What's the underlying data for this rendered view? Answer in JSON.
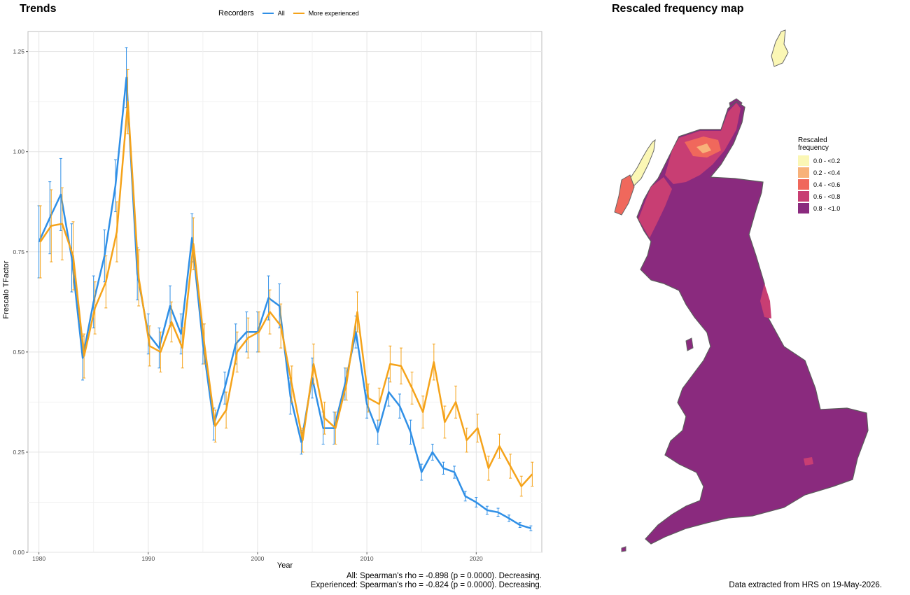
{
  "titles": {
    "trends": "Trends",
    "map": "Rescaled frequency map"
  },
  "legend": {
    "title": "Recorders",
    "all": "All",
    "experienced": "More experienced"
  },
  "colors": {
    "all": "#2f8fe6",
    "experienced": "#f5a31a"
  },
  "stats": {
    "all": "All: Spearman's rho = -0.898 (p = 0.0000). Decreasing.",
    "experienced": "Experienced: Spearman's rho = -0.824 (p = 0.0000). Decreasing."
  },
  "footer": "Data extracted from HRS on 19-May-2026.",
  "map_legend": {
    "title_line1": "Rescaled",
    "title_line2": "frequency",
    "items": [
      {
        "label": "0.0 - <0.2",
        "color": "#fbf7b5"
      },
      {
        "label": "0.2 - <0.4",
        "color": "#f8b27a"
      },
      {
        "label": "0.4 - <0.6",
        "color": "#f0685c"
      },
      {
        "label": "0.6 - <0.8",
        "color": "#c83e73"
      },
      {
        "label": "0.8 - <1.0",
        "color": "#8a2a7e"
      }
    ]
  },
  "chart_data": {
    "type": "line",
    "xlabel": "Year",
    "ylabel": "Frescalo TFactor",
    "xlim": [
      1979,
      2026
    ],
    "ylim": [
      0,
      1.3
    ],
    "xticks": [
      1980,
      1990,
      2000,
      2010,
      2020
    ],
    "yticks": [
      0.0,
      0.25,
      0.5,
      0.75,
      1.0,
      1.25
    ],
    "ytick_labels": [
      "0.00",
      "0.25",
      "0.50",
      "0.75",
      "1.00",
      "1.25"
    ],
    "grid": true,
    "error_bars": true,
    "series": [
      {
        "name": "All",
        "x": [
          1980,
          1981,
          1982,
          1983,
          1984,
          1985,
          1986,
          1987,
          1988,
          1989,
          1990,
          1991,
          1992,
          1993,
          1994,
          1995,
          1996,
          1997,
          1998,
          1999,
          2000,
          2001,
          2002,
          2003,
          2004,
          2005,
          2006,
          2007,
          2008,
          2009,
          2010,
          2011,
          2012,
          2013,
          2014,
          2015,
          2016,
          2017,
          2018,
          2019,
          2020,
          2021,
          2022,
          2023,
          2024,
          2025
        ],
        "y": [
          0.775,
          0.835,
          0.893,
          0.735,
          0.485,
          0.625,
          0.74,
          0.915,
          1.185,
          0.695,
          0.545,
          0.51,
          0.615,
          0.545,
          0.785,
          0.52,
          0.32,
          0.41,
          0.52,
          0.55,
          0.55,
          0.635,
          0.615,
          0.39,
          0.275,
          0.435,
          0.31,
          0.31,
          0.42,
          0.55,
          0.37,
          0.3,
          0.4,
          0.365,
          0.3,
          0.2,
          0.25,
          0.21,
          0.2,
          0.14,
          0.125,
          0.105,
          0.1,
          0.085,
          0.068,
          0.06
        ],
        "err": [
          0.09,
          0.09,
          0.09,
          0.085,
          0.055,
          0.065,
          0.065,
          0.065,
          0.075,
          0.065,
          0.05,
          0.05,
          0.05,
          0.05,
          0.06,
          0.05,
          0.04,
          0.04,
          0.05,
          0.05,
          0.05,
          0.055,
          0.055,
          0.045,
          0.03,
          0.05,
          0.04,
          0.04,
          0.04,
          0.04,
          0.035,
          0.03,
          0.035,
          0.03,
          0.03,
          0.02,
          0.02,
          0.015,
          0.015,
          0.012,
          0.012,
          0.01,
          0.01,
          0.008,
          0.006,
          0.006
        ]
      },
      {
        "name": "More experienced",
        "x": [
          1980,
          1981,
          1982,
          1983,
          1984,
          1985,
          1986,
          1987,
          1988,
          1989,
          1990,
          1991,
          1992,
          1993,
          1994,
          1995,
          1996,
          1997,
          1998,
          1999,
          2000,
          2001,
          2002,
          2003,
          2004,
          2005,
          2006,
          2007,
          2008,
          2009,
          2010,
          2011,
          2012,
          2013,
          2014,
          2015,
          2016,
          2017,
          2018,
          2019,
          2020,
          2021,
          2022,
          2023,
          2024,
          2025
        ],
        "y": [
          0.775,
          0.815,
          0.82,
          0.74,
          0.49,
          0.61,
          0.675,
          0.8,
          1.125,
          0.685,
          0.515,
          0.5,
          0.575,
          0.51,
          0.77,
          0.52,
          0.315,
          0.355,
          0.5,
          0.535,
          0.55,
          0.6,
          0.565,
          0.42,
          0.28,
          0.47,
          0.335,
          0.31,
          0.42,
          0.6,
          0.385,
          0.37,
          0.47,
          0.465,
          0.41,
          0.35,
          0.475,
          0.325,
          0.375,
          0.28,
          0.31,
          0.21,
          0.265,
          0.215,
          0.165,
          0.195
        ],
        "err": [
          0.09,
          0.09,
          0.09,
          0.085,
          0.055,
          0.065,
          0.065,
          0.075,
          0.08,
          0.07,
          0.05,
          0.05,
          0.05,
          0.05,
          0.065,
          0.05,
          0.04,
          0.045,
          0.05,
          0.05,
          0.05,
          0.055,
          0.055,
          0.045,
          0.03,
          0.05,
          0.04,
          0.04,
          0.04,
          0.05,
          0.035,
          0.04,
          0.045,
          0.045,
          0.04,
          0.04,
          0.045,
          0.04,
          0.04,
          0.03,
          0.035,
          0.03,
          0.03,
          0.03,
          0.025,
          0.03
        ]
      }
    ]
  }
}
